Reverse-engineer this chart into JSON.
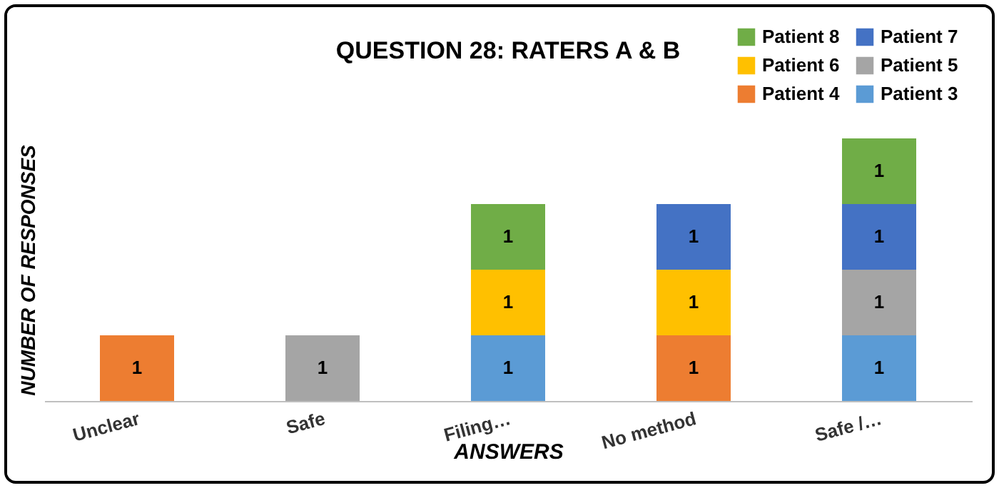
{
  "chart_data": {
    "type": "bar",
    "stacked": true,
    "title": "QUESTION 28: RATERS A & B",
    "xlabel": "ANSWERS",
    "ylabel": "NUMBER OF RESPONSES",
    "categories": [
      "Unclear",
      "Safe",
      "Filing…",
      "No method",
      "Safe /…"
    ],
    "series": [
      {
        "name": "Patient 3",
        "color": "#5b9bd5",
        "values": [
          null,
          null,
          1,
          null,
          1
        ]
      },
      {
        "name": "Patient 4",
        "color": "#ed7d31",
        "values": [
          1,
          null,
          null,
          1,
          null
        ]
      },
      {
        "name": "Patient 5",
        "color": "#a5a5a5",
        "values": [
          null,
          1,
          null,
          null,
          1
        ]
      },
      {
        "name": "Patient 6",
        "color": "#ffc000",
        "values": [
          null,
          null,
          1,
          1,
          null
        ]
      },
      {
        "name": "Patient 7",
        "color": "#4472c4",
        "values": [
          null,
          null,
          null,
          1,
          1
        ]
      },
      {
        "name": "Patient 8",
        "color": "#70ad47",
        "values": [
          null,
          null,
          1,
          null,
          1
        ]
      }
    ],
    "data_labels": true,
    "legend": "top right",
    "grid": false
  }
}
